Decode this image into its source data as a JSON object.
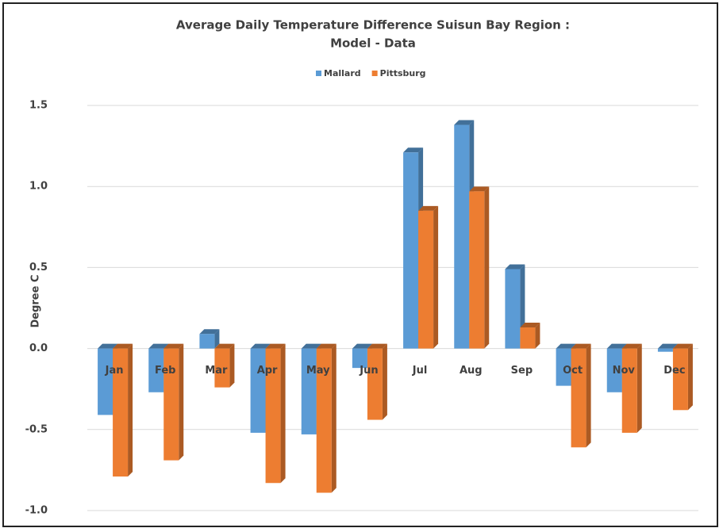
{
  "chart_data": {
    "type": "bar",
    "title": [
      "Average Daily Temperature Difference Suisun Bay Region :",
      "Model - Data"
    ],
    "y_label": "Degree C",
    "categories": [
      "Jan",
      "Feb",
      "Mar",
      "Apr",
      "May",
      "Jun",
      "Jul",
      "Aug",
      "Sep",
      "Oct",
      "Nov",
      "Dec"
    ],
    "series": [
      {
        "name": "Mallard",
        "color": "#5b9bd5",
        "values": [
          -0.41,
          -0.27,
          0.09,
          -0.52,
          -0.53,
          -0.12,
          1.21,
          1.38,
          0.49,
          -0.23,
          -0.27,
          -0.02
        ]
      },
      {
        "name": "Pittsburg",
        "color": "#ed7d31",
        "values": [
          -0.79,
          -0.69,
          -0.24,
          -0.83,
          -0.89,
          -0.44,
          0.85,
          0.97,
          0.13,
          -0.61,
          -0.52,
          -0.38
        ]
      }
    ],
    "ylim": [
      -1.0,
      1.5
    ],
    "yticks": [
      {
        "value": -1,
        "label": "-1.0"
      },
      -0.5,
      {
        "value": 0,
        "label": "0.0"
      },
      0.5,
      {
        "value": 1,
        "label": "1.0"
      },
      1.5
    ],
    "grid": true,
    "legend": "top"
  }
}
